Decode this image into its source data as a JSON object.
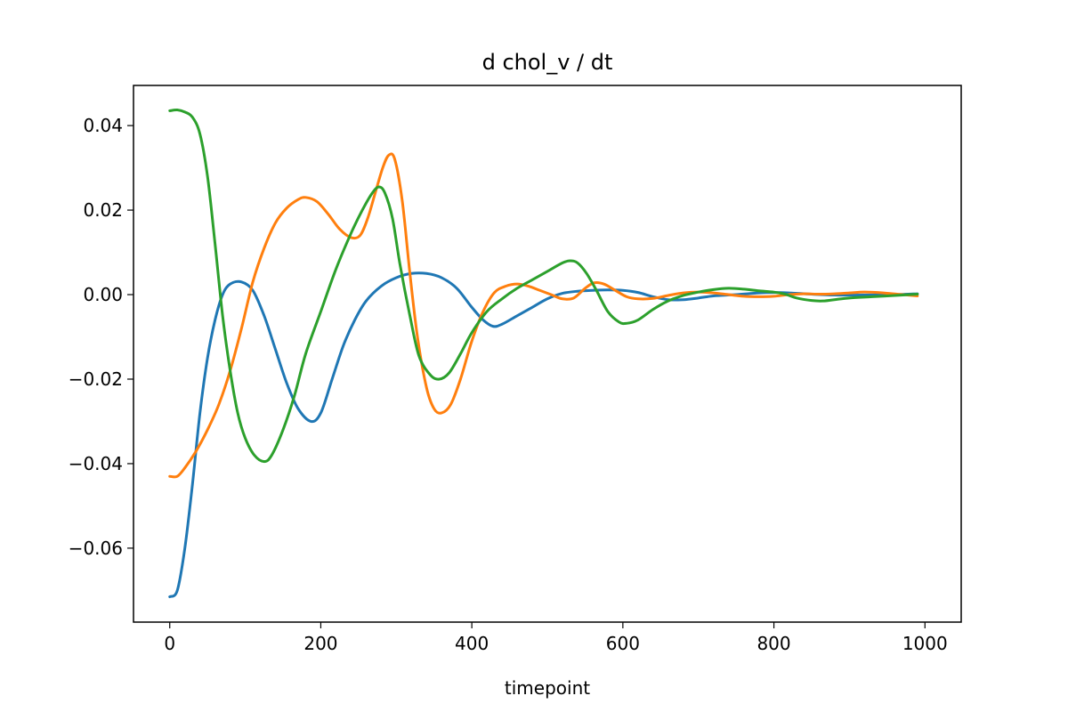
{
  "chart_data": {
    "type": "line",
    "title": "d chol_v / dt",
    "xlabel": "timepoint",
    "ylabel": "",
    "xlim": [
      -48,
      1048
    ],
    "ylim": [
      -0.0775,
      0.0495
    ],
    "xticks": [
      0,
      200,
      400,
      600,
      800,
      1000
    ],
    "yticks": [
      -0.06,
      -0.04,
      -0.02,
      0.0,
      0.02,
      0.04
    ],
    "ytick_labels": [
      "−0.06",
      "−0.04",
      "−0.02",
      "0.00",
      "0.02",
      "0.04"
    ],
    "grid": false,
    "legend": "none",
    "series": [
      {
        "color": "#1f77b4",
        "points": [
          [
            0,
            -0.0715
          ],
          [
            10,
            -0.07
          ],
          [
            20,
            -0.06
          ],
          [
            30,
            -0.045
          ],
          [
            40,
            -0.028
          ],
          [
            50,
            -0.015
          ],
          [
            60,
            -0.006
          ],
          [
            70,
            0.0
          ],
          [
            80,
            0.0025
          ],
          [
            95,
            0.003
          ],
          [
            110,
            0.001
          ],
          [
            125,
            -0.005
          ],
          [
            140,
            -0.013
          ],
          [
            155,
            -0.021
          ],
          [
            170,
            -0.027
          ],
          [
            187,
            -0.03
          ],
          [
            200,
            -0.028
          ],
          [
            215,
            -0.02
          ],
          [
            230,
            -0.012
          ],
          [
            245,
            -0.006
          ],
          [
            260,
            -0.0015
          ],
          [
            280,
            0.002
          ],
          [
            300,
            0.004
          ],
          [
            320,
            0.005
          ],
          [
            340,
            0.005
          ],
          [
            360,
            0.004
          ],
          [
            380,
            0.0015
          ],
          [
            400,
            -0.003
          ],
          [
            415,
            -0.006
          ],
          [
            428,
            -0.0075
          ],
          [
            440,
            -0.007
          ],
          [
            460,
            -0.005
          ],
          [
            480,
            -0.003
          ],
          [
            500,
            -0.001
          ],
          [
            520,
            0.0003
          ],
          [
            540,
            0.0008
          ],
          [
            560,
            0.001
          ],
          [
            580,
            0.0011
          ],
          [
            600,
            0.001
          ],
          [
            620,
            0.0005
          ],
          [
            640,
            -0.0005
          ],
          [
            660,
            -0.0012
          ],
          [
            680,
            -0.0012
          ],
          [
            700,
            -0.0008
          ],
          [
            720,
            -0.0003
          ],
          [
            750,
            0.0
          ],
          [
            780,
            0.0004
          ],
          [
            800,
            0.0005
          ],
          [
            820,
            0.0004
          ],
          [
            850,
            0.0001
          ],
          [
            880,
            -0.0001
          ],
          [
            920,
            -0.0001
          ],
          [
            960,
            0.0
          ],
          [
            990,
            0.0002
          ]
        ]
      },
      {
        "color": "#ff7f0e",
        "points": [
          [
            0,
            -0.043
          ],
          [
            10,
            -0.043
          ],
          [
            20,
            -0.041
          ],
          [
            35,
            -0.037
          ],
          [
            50,
            -0.032
          ],
          [
            65,
            -0.026
          ],
          [
            80,
            -0.018
          ],
          [
            95,
            -0.008
          ],
          [
            110,
            0.003
          ],
          [
            125,
            0.011
          ],
          [
            140,
            0.017
          ],
          [
            155,
            0.0205
          ],
          [
            170,
            0.0225
          ],
          [
            180,
            0.023
          ],
          [
            195,
            0.022
          ],
          [
            210,
            0.019
          ],
          [
            225,
            0.0155
          ],
          [
            240,
            0.0135
          ],
          [
            252,
            0.014
          ],
          [
            262,
            0.018
          ],
          [
            272,
            0.024
          ],
          [
            282,
            0.03
          ],
          [
            290,
            0.033
          ],
          [
            298,
            0.032
          ],
          [
            308,
            0.022
          ],
          [
            318,
            0.005
          ],
          [
            328,
            -0.01
          ],
          [
            340,
            -0.022
          ],
          [
            350,
            -0.027
          ],
          [
            360,
            -0.028
          ],
          [
            372,
            -0.026
          ],
          [
            385,
            -0.02
          ],
          [
            400,
            -0.011
          ],
          [
            415,
            -0.004
          ],
          [
            430,
            0.0005
          ],
          [
            445,
            0.002
          ],
          [
            460,
            0.0025
          ],
          [
            475,
            0.002
          ],
          [
            490,
            0.001
          ],
          [
            505,
            0.0
          ],
          [
            520,
            -0.001
          ],
          [
            535,
            -0.0008
          ],
          [
            550,
            0.0015
          ],
          [
            562,
            0.0028
          ],
          [
            575,
            0.0025
          ],
          [
            590,
            0.001
          ],
          [
            605,
            -0.0005
          ],
          [
            620,
            -0.001
          ],
          [
            640,
            -0.0009
          ],
          [
            660,
            -0.0002
          ],
          [
            680,
            0.0004
          ],
          [
            700,
            0.0006
          ],
          [
            720,
            0.0004
          ],
          [
            740,
            0.0
          ],
          [
            760,
            -0.0004
          ],
          [
            780,
            -0.0005
          ],
          [
            800,
            -0.0004
          ],
          [
            820,
            0.0
          ],
          [
            840,
            0.0002
          ],
          [
            860,
            0.0001
          ],
          [
            880,
            0.0002
          ],
          [
            900,
            0.0004
          ],
          [
            920,
            0.0006
          ],
          [
            945,
            0.0004
          ],
          [
            970,
            0.0
          ],
          [
            990,
            -0.0003
          ]
        ]
      },
      {
        "color": "#2ca02c",
        "points": [
          [
            0,
            0.0435
          ],
          [
            10,
            0.0437
          ],
          [
            20,
            0.0432
          ],
          [
            30,
            0.042
          ],
          [
            40,
            0.038
          ],
          [
            50,
            0.028
          ],
          [
            60,
            0.012
          ],
          [
            70,
            -0.005
          ],
          [
            80,
            -0.018
          ],
          [
            90,
            -0.028
          ],
          [
            100,
            -0.034
          ],
          [
            112,
            -0.038
          ],
          [
            125,
            -0.0395
          ],
          [
            135,
            -0.038
          ],
          [
            150,
            -0.032
          ],
          [
            165,
            -0.024
          ],
          [
            180,
            -0.014
          ],
          [
            200,
            -0.004
          ],
          [
            220,
            0.006
          ],
          [
            240,
            0.0145
          ],
          [
            255,
            0.02
          ],
          [
            268,
            0.024
          ],
          [
            277,
            0.0255
          ],
          [
            285,
            0.024
          ],
          [
            295,
            0.018
          ],
          [
            305,
            0.007
          ],
          [
            318,
            -0.005
          ],
          [
            330,
            -0.0145
          ],
          [
            345,
            -0.019
          ],
          [
            357,
            -0.02
          ],
          [
            370,
            -0.0185
          ],
          [
            385,
            -0.014
          ],
          [
            400,
            -0.009
          ],
          [
            420,
            -0.004
          ],
          [
            440,
            -0.001
          ],
          [
            460,
            0.0015
          ],
          [
            480,
            0.0035
          ],
          [
            500,
            0.0055
          ],
          [
            520,
            0.0075
          ],
          [
            530,
            0.008
          ],
          [
            540,
            0.0075
          ],
          [
            552,
            0.005
          ],
          [
            565,
            0.001
          ],
          [
            580,
            -0.004
          ],
          [
            595,
            -0.0065
          ],
          [
            605,
            -0.0068
          ],
          [
            620,
            -0.006
          ],
          [
            640,
            -0.0035
          ],
          [
            660,
            -0.0015
          ],
          [
            680,
            -0.0002
          ],
          [
            700,
            0.0006
          ],
          [
            720,
            0.0012
          ],
          [
            740,
            0.0015
          ],
          [
            760,
            0.0013
          ],
          [
            780,
            0.0009
          ],
          [
            800,
            0.0006
          ],
          [
            815,
            0.0001
          ],
          [
            830,
            -0.0008
          ],
          [
            850,
            -0.0014
          ],
          [
            865,
            -0.0015
          ],
          [
            880,
            -0.0012
          ],
          [
            900,
            -0.0008
          ],
          [
            930,
            -0.0005
          ],
          [
            960,
            -0.0002
          ],
          [
            990,
            0.0001
          ]
        ]
      }
    ]
  }
}
